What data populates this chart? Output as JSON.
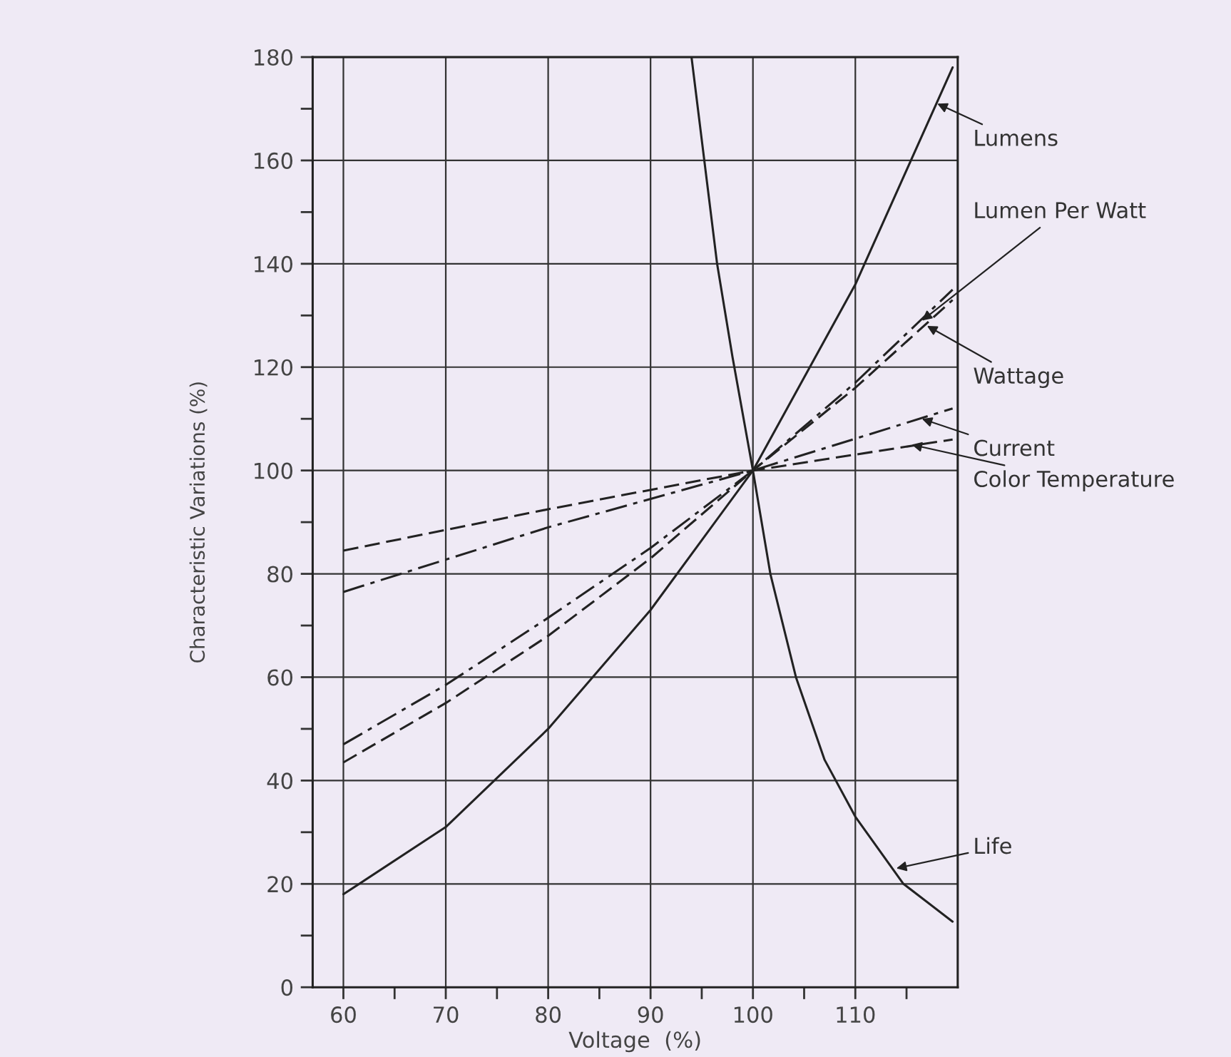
{
  "chart_data": {
    "type": "line",
    "xlabel": "Voltage  (%)",
    "ylabel": "Characteristic Variations (%)",
    "xlim": [
      57,
      120
    ],
    "ylim": [
      0,
      180
    ],
    "xticks": [
      60,
      {
        "value": 65,
        "label": null
      },
      70,
      {
        "value": 75,
        "label": null
      },
      80,
      {
        "value": 85,
        "label": null
      },
      90,
      {
        "value": 95,
        "label": null
      },
      100,
      {
        "value": 105,
        "label": null
      },
      110,
      {
        "value": 115,
        "label": null
      }
    ],
    "yticks": [
      0,
      {
        "value": 10,
        "label": null
      },
      20,
      {
        "value": 30,
        "label": null
      },
      40,
      {
        "value": 50,
        "label": null
      },
      60,
      {
        "value": 70,
        "label": null
      },
      80,
      {
        "value": 90,
        "label": null
      },
      100,
      {
        "value": 110,
        "label": null
      },
      120,
      {
        "value": 130,
        "label": null
      },
      140,
      {
        "value": 150,
        "label": null
      },
      160,
      {
        "value": 170,
        "label": null
      },
      180
    ],
    "grid": true,
    "legend": false,
    "marker": "none",
    "series": [
      {
        "color": "#222222",
        "line_style": "solid",
        "x": [
          60,
          70,
          80,
          90,
          100,
          110,
          119.5
        ],
        "values": [
          18,
          31,
          50,
          73,
          100,
          136,
          178
        ]
      },
      {
        "color": "#222222",
        "line_style": "dashdot",
        "x": [
          60,
          70,
          80,
          90,
          100,
          110,
          119.5
        ],
        "values": [
          47,
          58.5,
          71.5,
          85,
          100,
          117,
          135
        ]
      },
      {
        "color": "#222222",
        "line_style": "dashed",
        "x": [
          60,
          70,
          80,
          90,
          100,
          110,
          119.5
        ],
        "values": [
          43.5,
          55,
          68,
          83,
          100,
          116,
          133
        ]
      },
      {
        "color": "#222222",
        "line_style": "dashdot",
        "x": [
          60,
          80,
          100,
          119.5
        ],
        "values": [
          76.5,
          89,
          100,
          112
        ]
      },
      {
        "color": "#222222",
        "line_style": "dashed",
        "x": [
          60,
          80,
          100,
          119.5
        ],
        "values": [
          84.5,
          92.5,
          100,
          106
        ]
      },
      {
        "color": "#222222",
        "line_style": "solid",
        "x": [
          94,
          96.5,
          98,
          100,
          101.7,
          104.2,
          107,
          110,
          114.7,
          119.5
        ],
        "values": [
          180,
          140,
          122,
          100,
          80,
          60,
          44,
          33,
          20,
          12.7
        ]
      }
    ],
    "annotations": [
      {
        "text": "Lumens",
        "x": 118,
        "y": 171
      },
      {
        "text": "Lumen Per Watt",
        "x": 116.5,
        "y": 129
      },
      {
        "text": "Wattage",
        "x": 117,
        "y": 128
      },
      {
        "text": "Current",
        "x": 116.5,
        "y": 110
      },
      {
        "text": "Color Temperature",
        "x": 115.5,
        "y": 105
      },
      {
        "text": "Life",
        "x": 114,
        "y": 23
      }
    ]
  }
}
